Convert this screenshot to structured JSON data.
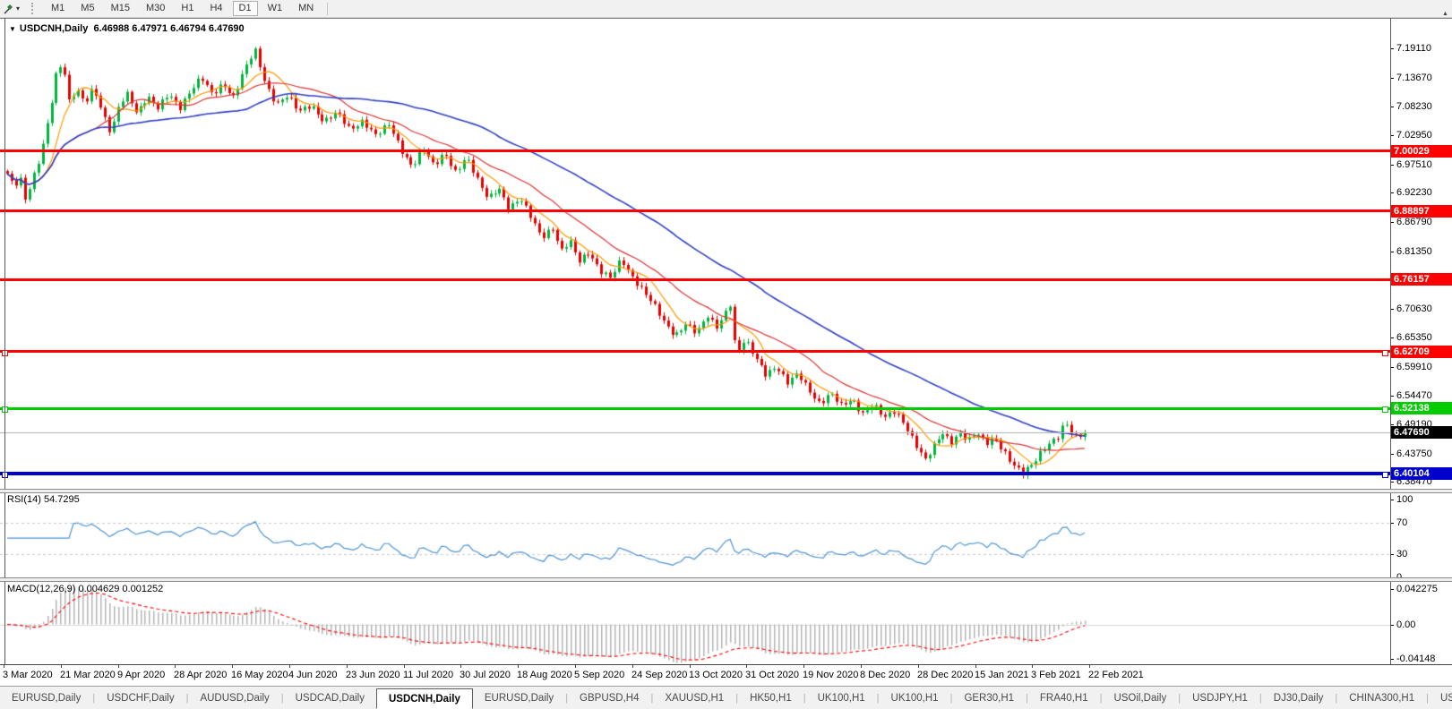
{
  "toolbar": {
    "tool_icon": "cursor-tool",
    "dropdown_caret": "▾",
    "timeframes": [
      "M1",
      "M5",
      "M15",
      "M30",
      "H1",
      "H4",
      "D1",
      "W1",
      "MN"
    ],
    "active_timeframe": "D1"
  },
  "chart_header": {
    "dropdown_icon": "▼",
    "symbol_label": "USDCNH,Daily",
    "ohlc": "6.46988 6.47971 6.46794 6.47690"
  },
  "price_axis": {
    "ticks": [
      "7.19110",
      "7.13670",
      "7.08230",
      "7.02950",
      "6.97510",
      "6.92230",
      "6.86790",
      "6.81350",
      "6.70630",
      "6.65350",
      "6.59910",
      "6.54470",
      "6.49190",
      "6.43750",
      "6.38470"
    ]
  },
  "levels": [
    {
      "label": "7.00029",
      "price": 7.00029,
      "color": "#ff0000",
      "thickness": 3,
      "handles": false,
      "text_color": "#ffffff"
    },
    {
      "label": "6.88897",
      "price": 6.88897,
      "color": "#ff0000",
      "thickness": 3,
      "handles": false,
      "text_color": "#ffffff"
    },
    {
      "label": "6.76157",
      "price": 6.76157,
      "color": "#ff0000",
      "thickness": 3,
      "handles": false,
      "text_color": "#ffffff"
    },
    {
      "label": "6.62709",
      "price": 6.62709,
      "color": "#ff0000",
      "thickness": 3,
      "handles": true,
      "text_color": "#ffffff"
    },
    {
      "label": "6.52138",
      "price": 6.52138,
      "color": "#00cc00",
      "thickness": 3,
      "handles": true,
      "text_color": "#ffffff"
    },
    {
      "label": "6.47690",
      "price": 6.4769,
      "color": "#bdbdbd",
      "thickness": 1,
      "handles": false,
      "box_color": "#000000",
      "text_color": "#ffffff"
    },
    {
      "label": "6.40104",
      "price": 6.40104,
      "color": "#0000cc",
      "thickness": 4,
      "handles": true,
      "text_color": "#ffffff"
    }
  ],
  "time_axis": {
    "labels": [
      "3 Mar 2020",
      "21 Mar 2020",
      "9 Apr 2020",
      "28 Apr 2020",
      "16 May 2020",
      "4 Jun 2020",
      "23 Jun 2020",
      "11 Jul 2020",
      "30 Jul 2020",
      "18 Aug 2020",
      "5 Sep 2020",
      "24 Sep 2020",
      "13 Oct 2020",
      "31 Oct 2020",
      "19 Nov 2020",
      "8 Dec 2020",
      "28 Dec 2020",
      "15 Jan 2021",
      "3 Feb 2021",
      "22 Feb 2021"
    ]
  },
  "rsi_panel": {
    "label": "RSI(14) 54.7295",
    "value": 54.7295,
    "axis_labels": [
      "100",
      "70",
      "30",
      "0"
    ],
    "axis_values": [
      100,
      70,
      30,
      0
    ],
    "upper_level": 70,
    "lower_level": 30,
    "line_color": "#4d94d6"
  },
  "macd_panel": {
    "label": "MACD(12,26,9) 0.004629 0.001252",
    "macd_value": 0.004629,
    "signal_value": 0.001252,
    "axis_labels": [
      "0.042275",
      "0.00",
      "-0.04148"
    ],
    "axis_values": [
      0.042275,
      0,
      -0.04148
    ],
    "histogram_color": "#b4b4b4",
    "signal_color": "#ff0000"
  },
  "tabs": {
    "items": [
      "EURUSD,Daily",
      "USDCHF,Daily",
      "AUDUSD,Daily",
      "USDCAD,Daily",
      "USDCNH,Daily",
      "EURUSD,Daily",
      "GBPUSD,H4",
      "XAUUSD,H1",
      "HK50,H1",
      "UK100,H1",
      "UK100,H1",
      "GER30,H1",
      "FRA40,H1",
      "USOil,Daily",
      "USDJPY,H1",
      "DJ30,Daily",
      "CHINA300,H1",
      "USOil,"
    ],
    "active_index": 4,
    "scroll_left_icon": "◄",
    "scroll_right_icon": "►"
  },
  "chart_data": {
    "type": "candlestick",
    "symbol": "USDCNH",
    "timeframe": "Daily",
    "ohlc_display": {
      "open": "6.46988",
      "high": "6.47971",
      "low": "6.46794",
      "close": "6.47690"
    },
    "y_range": [
      6.3847,
      7.1911
    ],
    "candles_count": 244,
    "bull_color": "#00b53e",
    "bear_color": "#e60000",
    "price_path_keyframes": [
      [
        0.0,
        6.958
      ],
      [
        0.006,
        6.932
      ],
      [
        0.012,
        6.948
      ],
      [
        0.016,
        6.906
      ],
      [
        0.022,
        6.94
      ],
      [
        0.03,
        6.99
      ],
      [
        0.038,
        7.06
      ],
      [
        0.046,
        7.148
      ],
      [
        0.052,
        7.16
      ],
      [
        0.058,
        7.085
      ],
      [
        0.064,
        7.118
      ],
      [
        0.072,
        7.092
      ],
      [
        0.08,
        7.12
      ],
      [
        0.09,
        7.06
      ],
      [
        0.096,
        7.03
      ],
      [
        0.104,
        7.088
      ],
      [
        0.112,
        7.11
      ],
      [
        0.12,
        7.072
      ],
      [
        0.13,
        7.1
      ],
      [
        0.14,
        7.078
      ],
      [
        0.15,
        7.108
      ],
      [
        0.16,
        7.082
      ],
      [
        0.17,
        7.112
      ],
      [
        0.18,
        7.135
      ],
      [
        0.19,
        7.105
      ],
      [
        0.2,
        7.128
      ],
      [
        0.21,
        7.1
      ],
      [
        0.22,
        7.148
      ],
      [
        0.23,
        7.188
      ],
      [
        0.24,
        7.125
      ],
      [
        0.25,
        7.088
      ],
      [
        0.26,
        7.102
      ],
      [
        0.27,
        7.072
      ],
      [
        0.282,
        7.088
      ],
      [
        0.294,
        7.055
      ],
      [
        0.306,
        7.07
      ],
      [
        0.318,
        7.04
      ],
      [
        0.33,
        7.058
      ],
      [
        0.342,
        7.028
      ],
      [
        0.354,
        7.048
      ],
      [
        0.366,
        7.002
      ],
      [
        0.376,
        6.972
      ],
      [
        0.386,
        7.005
      ],
      [
        0.396,
        6.97
      ],
      [
        0.406,
        6.998
      ],
      [
        0.416,
        6.962
      ],
      [
        0.426,
        6.988
      ],
      [
        0.436,
        6.945
      ],
      [
        0.446,
        6.912
      ],
      [
        0.456,
        6.935
      ],
      [
        0.466,
        6.892
      ],
      [
        0.476,
        6.91
      ],
      [
        0.486,
        6.878
      ],
      [
        0.496,
        6.842
      ],
      [
        0.506,
        6.858
      ],
      [
        0.514,
        6.812
      ],
      [
        0.522,
        6.832
      ],
      [
        0.53,
        6.795
      ],
      [
        0.54,
        6.815
      ],
      [
        0.55,
        6.778
      ],
      [
        0.56,
        6.762
      ],
      [
        0.57,
        6.798
      ],
      [
        0.58,
        6.768
      ],
      [
        0.59,
        6.742
      ],
      [
        0.6,
        6.712
      ],
      [
        0.61,
        6.678
      ],
      [
        0.62,
        6.658
      ],
      [
        0.63,
        6.682
      ],
      [
        0.64,
        6.66
      ],
      [
        0.65,
        6.692
      ],
      [
        0.658,
        6.672
      ],
      [
        0.666,
        6.7
      ],
      [
        0.672,
        6.722
      ],
      [
        0.676,
        6.618
      ],
      [
        0.684,
        6.648
      ],
      [
        0.694,
        6.616
      ],
      [
        0.704,
        6.586
      ],
      [
        0.714,
        6.602
      ],
      [
        0.724,
        6.568
      ],
      [
        0.734,
        6.584
      ],
      [
        0.744,
        6.556
      ],
      [
        0.754,
        6.532
      ],
      [
        0.764,
        6.55
      ],
      [
        0.774,
        6.524
      ],
      [
        0.784,
        6.538
      ],
      [
        0.794,
        6.514
      ],
      [
        0.804,
        6.53
      ],
      [
        0.814,
        6.502
      ],
      [
        0.824,
        6.516
      ],
      [
        0.834,
        6.49
      ],
      [
        0.844,
        6.452
      ],
      [
        0.852,
        6.424
      ],
      [
        0.86,
        6.45
      ],
      [
        0.868,
        6.476
      ],
      [
        0.876,
        6.46
      ],
      [
        0.884,
        6.478
      ],
      [
        0.892,
        6.462
      ],
      [
        0.9,
        6.474
      ],
      [
        0.908,
        6.455
      ],
      [
        0.916,
        6.468
      ],
      [
        0.924,
        6.446
      ],
      [
        0.932,
        6.42
      ],
      [
        0.942,
        6.398
      ],
      [
        0.952,
        6.418
      ],
      [
        0.96,
        6.444
      ],
      [
        0.968,
        6.46
      ],
      [
        0.976,
        6.47
      ],
      [
        0.982,
        6.495
      ],
      [
        0.99,
        6.466
      ],
      [
        1.0,
        6.477
      ]
    ],
    "moving_averages": [
      {
        "name": "fast",
        "period": 8,
        "color": "#ff9900",
        "width": 1.2
      },
      {
        "name": "mid",
        "period": 21,
        "color": "#dd3333",
        "width": 1.2
      },
      {
        "name": "slow",
        "period": 55,
        "color": "#2f3fc4",
        "width": 1.6
      }
    ]
  }
}
